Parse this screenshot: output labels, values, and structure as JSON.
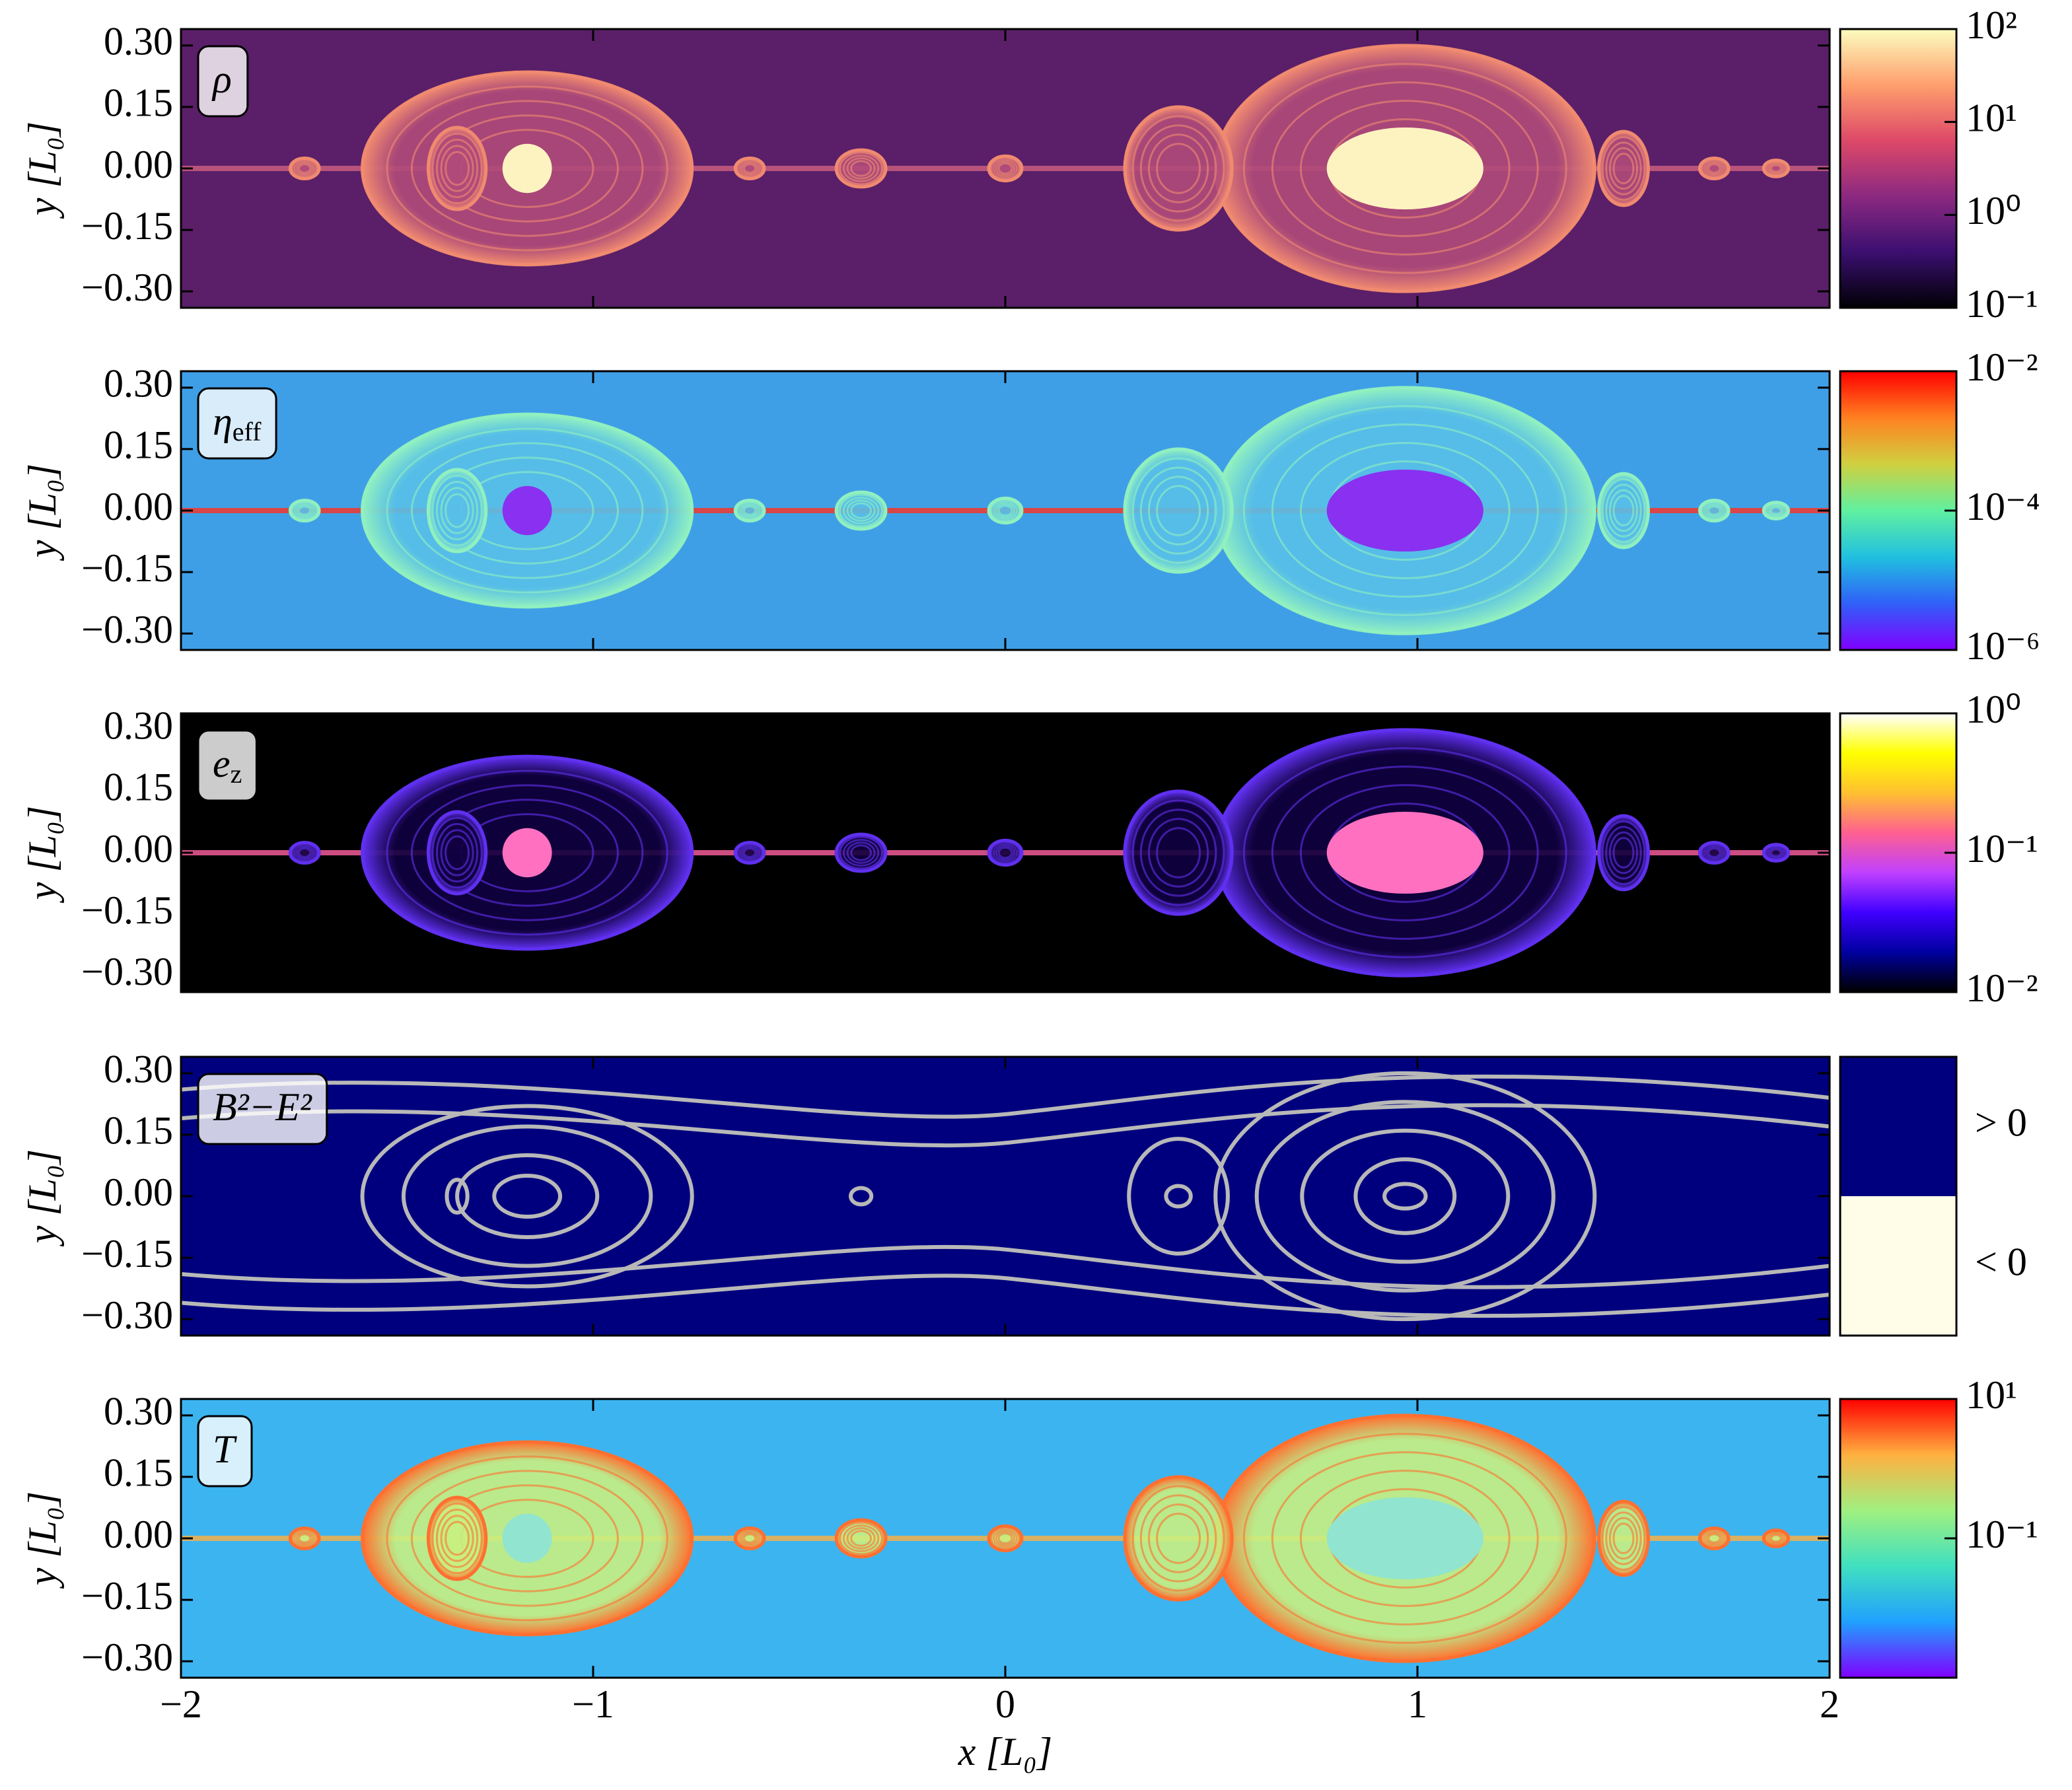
{
  "chart_data": [
    {
      "type": "heatmap",
      "label": {
        "main": "ρ",
        "sub": ""
      },
      "ylabel": "y [L₀]",
      "xlim": [
        -2,
        2
      ],
      "xticks": [
        -2,
        -1,
        0,
        1,
        2
      ],
      "ylim": [
        -0.34,
        0.34
      ],
      "yticks": [
        {
          "value": 0.3,
          "label": "0.30"
        },
        {
          "value": 0.15,
          "label": "0.15"
        },
        {
          "value": 0,
          "label": "0.00"
        },
        {
          "value": -0.15,
          "label": "−0.15"
        },
        {
          "value": -0.3,
          "label": "−0.30"
        }
      ],
      "colorbar": {
        "scale": "log",
        "colormap": "magma",
        "lim": [
          0.1,
          100
        ],
        "ticks": [
          {
            "value": 100,
            "label": "10²"
          },
          {
            "value": 10,
            "label": "10¹"
          },
          {
            "value": 1,
            "label": "10⁰"
          },
          {
            "value": 0.1,
            "label": "10⁻¹"
          }
        ]
      }
    },
    {
      "type": "heatmap",
      "label": {
        "main": "η",
        "sub": "eff"
      },
      "ylabel": "y [L₀]",
      "xlim": [
        -2,
        2
      ],
      "xticks": [
        -2,
        -1,
        0,
        1,
        2
      ],
      "ylim": [
        -0.34,
        0.34
      ],
      "yticks": [
        {
          "value": 0.3,
          "label": "0.30"
        },
        {
          "value": 0.15,
          "label": "0.15"
        },
        {
          "value": 0,
          "label": "0.00"
        },
        {
          "value": -0.15,
          "label": "−0.15"
        },
        {
          "value": -0.3,
          "label": "−0.30"
        }
      ],
      "colorbar": {
        "scale": "log",
        "colormap": "rainbow",
        "lim": [
          1e-06,
          0.01
        ],
        "ticks": [
          {
            "value": 0.01,
            "label": "10⁻²"
          },
          {
            "value": 0.0001,
            "label": "10⁻⁴"
          },
          {
            "value": 1e-06,
            "label": "10⁻⁶"
          }
        ]
      }
    },
    {
      "type": "heatmap",
      "label": {
        "main": "e",
        "sub": "z"
      },
      "ylabel": "y [L₀]",
      "xlim": [
        -2,
        2
      ],
      "xticks": [
        -2,
        -1,
        0,
        1,
        2
      ],
      "ylim": [
        -0.34,
        0.34
      ],
      "yticks": [
        {
          "value": 0.3,
          "label": "0.30"
        },
        {
          "value": 0.15,
          "label": "0.15"
        },
        {
          "value": 0,
          "label": "0.00"
        },
        {
          "value": -0.15,
          "label": "−0.15"
        },
        {
          "value": -0.3,
          "label": "−0.30"
        }
      ],
      "colorbar": {
        "scale": "log",
        "colormap": "gnuplot2",
        "lim": [
          0.01,
          1
        ],
        "ticks": [
          {
            "value": 1,
            "label": "10⁰"
          },
          {
            "value": 0.1,
            "label": "10⁻¹"
          },
          {
            "value": 0.01,
            "label": "10⁻²"
          }
        ]
      }
    },
    {
      "type": "heatmap",
      "label": {
        "main": "B²−E²",
        "sub": ""
      },
      "ylabel": "y [L₀]",
      "xlim": [
        -2,
        2
      ],
      "xticks": [
        -2,
        -1,
        0,
        1,
        2
      ],
      "ylim": [
        -0.34,
        0.34
      ],
      "yticks": [
        {
          "value": 0.3,
          "label": "0.30"
        },
        {
          "value": 0.15,
          "label": "0.15"
        },
        {
          "value": 0,
          "label": "0.00"
        },
        {
          "value": -0.15,
          "label": "−0.15"
        },
        {
          "value": -0.3,
          "label": "−0.30"
        }
      ],
      "colorbar": {
        "scale": "categorical",
        "colormap": "sign",
        "categories": [
          "> 0",
          "< 0"
        ],
        "colors": [
          "#00007f",
          "#fffde8"
        ]
      }
    },
    {
      "type": "heatmap",
      "label": {
        "main": "T",
        "sub": ""
      },
      "ylabel": "y [L₀]",
      "xlabel": "x [L₀]",
      "xlim": [
        -2,
        2
      ],
      "xticks": [
        {
          "value": -2,
          "label": "−2"
        },
        {
          "value": -1,
          "label": "−1"
        },
        {
          "value": 0,
          "label": "0"
        },
        {
          "value": 1,
          "label": "1"
        },
        {
          "value": 2,
          "label": "2"
        }
      ],
      "ylim": [
        -0.34,
        0.34
      ],
      "yticks": [
        {
          "value": 0.3,
          "label": "0.30"
        },
        {
          "value": 0.15,
          "label": "0.15"
        },
        {
          "value": 0,
          "label": "0.00"
        },
        {
          "value": -0.15,
          "label": "−0.15"
        },
        {
          "value": -0.3,
          "label": "−0.30"
        }
      ],
      "colorbar": {
        "scale": "log",
        "colormap": "jet",
        "lim": [
          0.001,
          10
        ],
        "ticks": [
          {
            "value": 10,
            "label": "10¹"
          },
          {
            "value": 0.1,
            "label": "10⁻¹"
          }
        ]
      }
    }
  ]
}
